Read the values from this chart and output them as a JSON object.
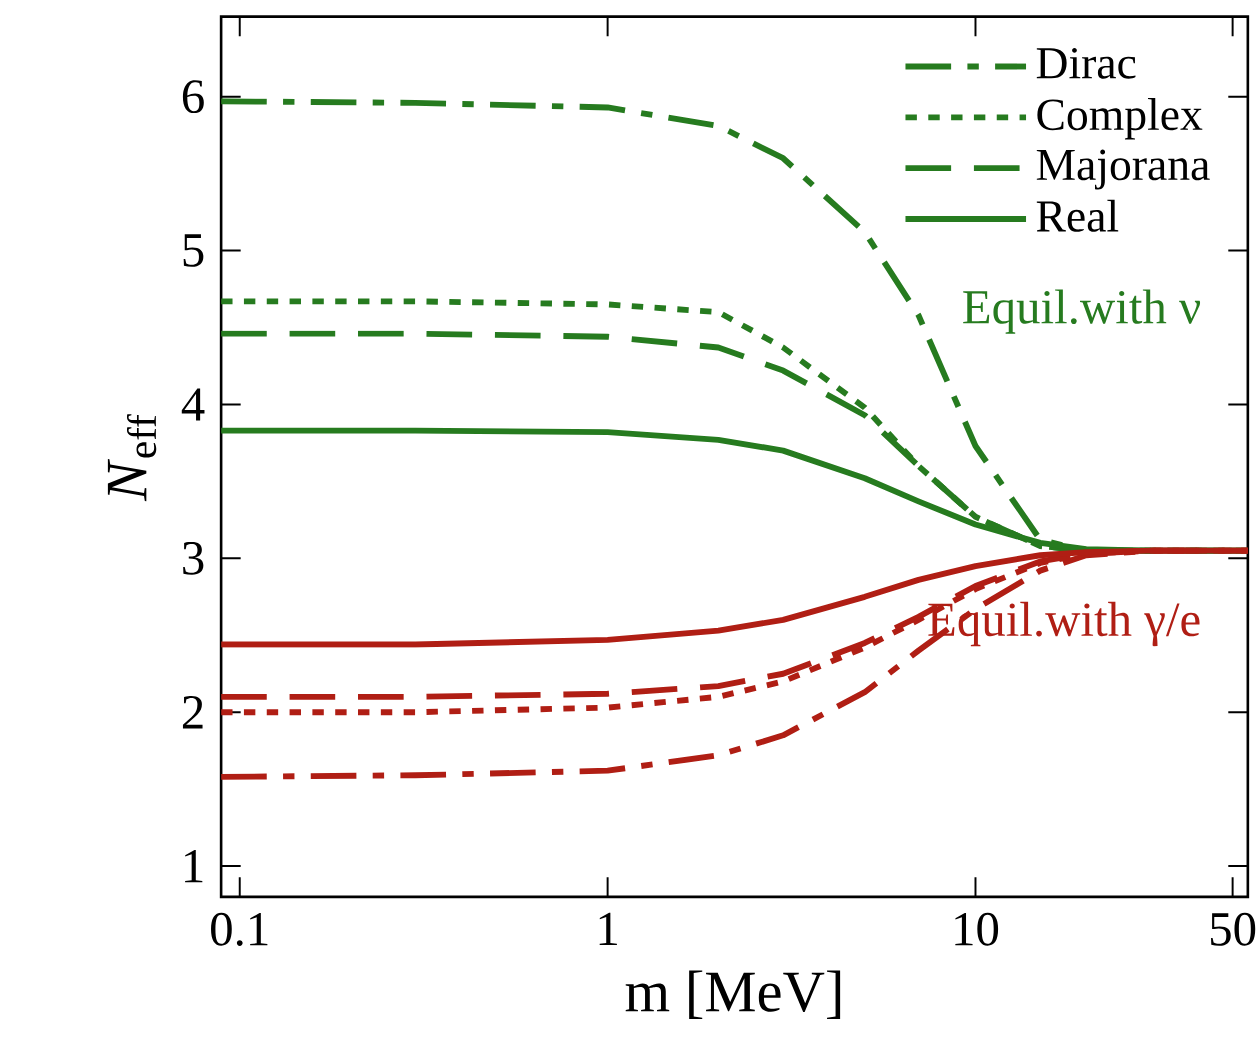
{
  "chart_data": {
    "type": "line",
    "xlabel": "m [MeV]",
    "ylabel": "*N*$_{eff}$",
    "log": "x",
    "xlim": [
      0.089,
      55
    ],
    "ylim": [
      0.8,
      6.52
    ],
    "xticks": [
      0.1,
      1,
      10,
      50
    ],
    "yticks": [
      1,
      2,
      3,
      4,
      5,
      6
    ],
    "legend": "top right",
    "marker": "none",
    "x": [
      0.089,
      0.3,
      1,
      2,
      3,
      5,
      7,
      10,
      15,
      20,
      30,
      55
    ],
    "series": [
      {
        "name": "Dirac",
        "color": "#267b1f",
        "line_style": "dashdot",
        "values": [
          5.97,
          5.96,
          5.93,
          5.81,
          5.6,
          5.12,
          4.58,
          3.73,
          3.12,
          3.05,
          3.05,
          3.05
        ]
      },
      {
        "name": "Complex",
        "color": "#267b1f",
        "line_style": "dotted",
        "values": [
          4.67,
          4.67,
          4.65,
          4.6,
          4.37,
          3.98,
          3.6,
          3.27,
          3.08,
          3.05,
          3.05,
          3.05
        ]
      },
      {
        "name": "Majorana",
        "color": "#267b1f",
        "line_style": "dashed",
        "values": [
          4.46,
          4.46,
          4.44,
          4.37,
          4.22,
          3.93,
          3.6,
          3.27,
          3.08,
          3.05,
          3.05,
          3.05
        ]
      },
      {
        "name": "Real",
        "color": "#267b1f",
        "line_style": "solid",
        "values": [
          3.83,
          3.83,
          3.82,
          3.77,
          3.7,
          3.52,
          3.37,
          3.22,
          3.1,
          3.06,
          3.05,
          3.05
        ]
      },
      {
        "color": "#b01e14",
        "line_style": "dashdot",
        "values": [
          1.58,
          1.59,
          1.62,
          1.72,
          1.85,
          2.13,
          2.4,
          2.67,
          2.92,
          3.02,
          3.05,
          3.05
        ]
      },
      {
        "color": "#b01e14",
        "line_style": "dotted",
        "values": [
          2.0,
          2.0,
          2.03,
          2.1,
          2.2,
          2.42,
          2.6,
          2.8,
          2.97,
          3.03,
          3.05,
          3.05
        ]
      },
      {
        "color": "#b01e14",
        "line_style": "dashed",
        "values": [
          2.1,
          2.1,
          2.12,
          2.17,
          2.25,
          2.45,
          2.62,
          2.82,
          2.98,
          3.03,
          3.05,
          3.05
        ]
      },
      {
        "color": "#b01e14",
        "line_style": "solid",
        "values": [
          2.44,
          2.44,
          2.47,
          2.53,
          2.6,
          2.75,
          2.86,
          2.95,
          3.02,
          3.04,
          3.05,
          3.05
        ]
      }
    ],
    "annotations": [
      "Equil.with ν",
      "Equil.with γ/e"
    ]
  }
}
